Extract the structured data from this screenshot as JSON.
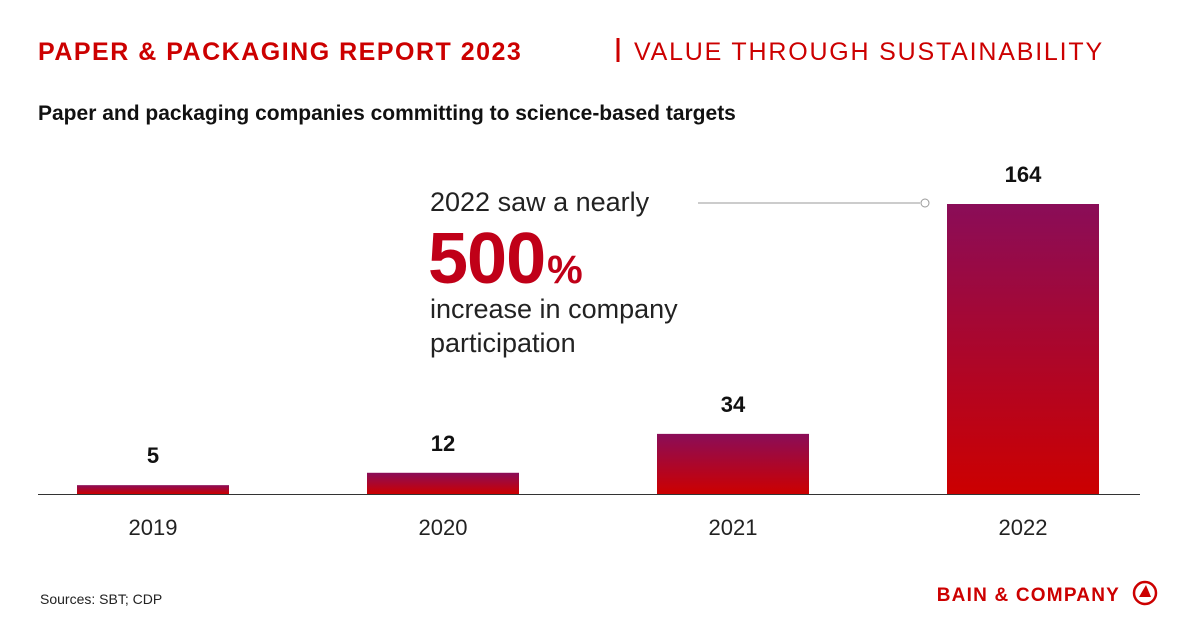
{
  "header": {
    "report": "PAPER & PACKAGING REPORT 2023",
    "theme": "VALUE THROUGH SUSTAINABILITY"
  },
  "chart_data": {
    "type": "bar",
    "title": "Paper and packaging companies committing to science-based targets",
    "categories": [
      "2019",
      "2020",
      "2021",
      "2022"
    ],
    "values": [
      5,
      12,
      34,
      164
    ],
    "color_top": "#8a0d58",
    "color_bottom": "#cc0000",
    "annotation": {
      "intro": "2022 saw a nearly",
      "highlight_number": "500",
      "highlight_unit": "%",
      "rest": [
        "increase in company",
        "participation"
      ]
    }
  },
  "footer": {
    "source": "Sources: SBT; CDP",
    "brand": "BAIN & COMPANY"
  }
}
